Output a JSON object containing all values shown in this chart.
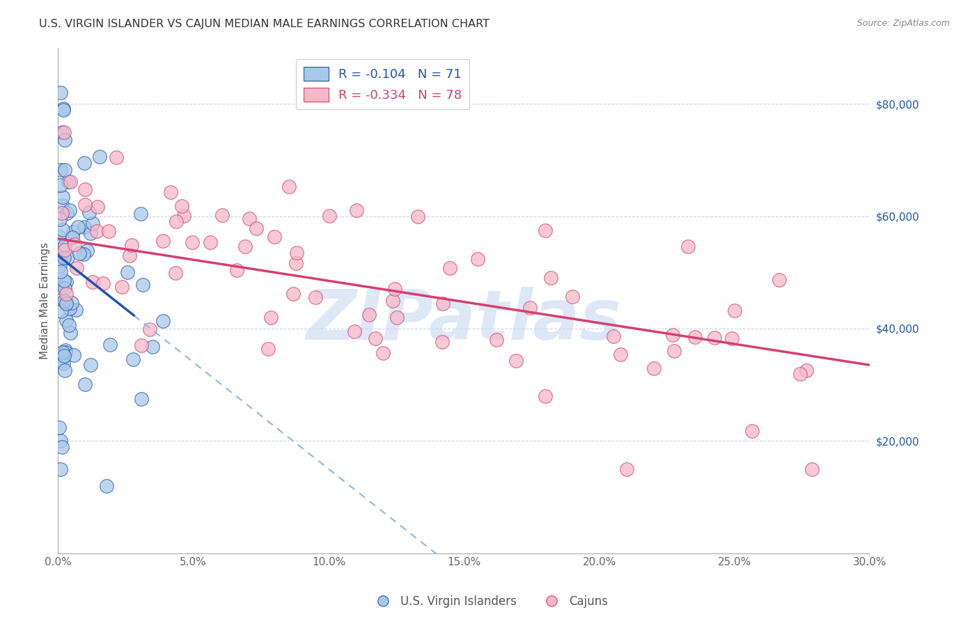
{
  "title": "U.S. VIRGIN ISLANDER VS CAJUN MEDIAN MALE EARNINGS CORRELATION CHART",
  "source": "Source: ZipAtlas.com",
  "ylabel": "Median Male Earnings",
  "right_ytick_labels": [
    "$20,000",
    "$40,000",
    "$60,000",
    "$80,000"
  ],
  "right_ytick_values": [
    20000,
    40000,
    60000,
    80000
  ],
  "xlim": [
    0.0,
    0.3
  ],
  "ylim": [
    0,
    90000
  ],
  "xtick_labels": [
    "0.0%",
    "5.0%",
    "10.0%",
    "15.0%",
    "20.0%",
    "25.0%",
    "30.0%"
  ],
  "xtick_values": [
    0.0,
    0.05,
    0.1,
    0.15,
    0.2,
    0.25,
    0.3
  ],
  "legend_r1": "-0.104",
  "legend_n1": "71",
  "legend_r2": "-0.334",
  "legend_n2": "78",
  "series1_color": "#a8c8e8",
  "series2_color": "#f4b8c8",
  "trendline1_color": "#2255aa",
  "trendline2_color": "#d44070",
  "dashed_line_color": "#88bbdd",
  "watermark_color": "#c8d8f0",
  "background_color": "#ffffff",
  "trendline1_intercept": 53000,
  "trendline1_slope": -380000,
  "trendline2_intercept": 56000,
  "trendline2_slope": -75000,
  "trendline1_xend": 0.028,
  "dashed_xstart": 0.028,
  "dashed_xend": 0.305
}
